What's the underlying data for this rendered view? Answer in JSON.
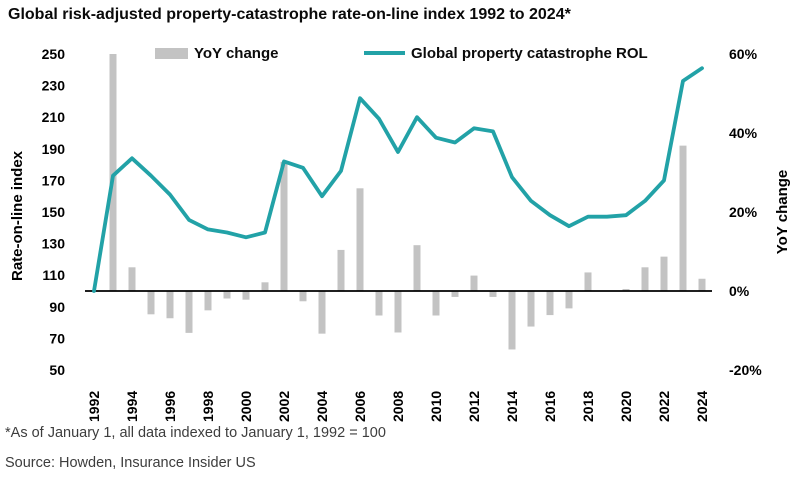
{
  "title": "Global risk-adjusted property-catastrophe rate-on-line index 1992 to 2024*",
  "footnote": "*As of January 1, all data indexed to January 1, 1992 = 100",
  "source": "Source: Howden, Insurance Insider US",
  "chart_data": {
    "type": "combo",
    "title": "Global risk-adjusted property-catastrophe rate-on-line index 1992 to 2024*",
    "x": [
      1992,
      1993,
      1994,
      1995,
      1996,
      1997,
      1998,
      1999,
      2000,
      2001,
      2002,
      2003,
      2004,
      2005,
      2006,
      2007,
      2008,
      2009,
      2010,
      2011,
      2012,
      2013,
      2014,
      2015,
      2016,
      2017,
      2018,
      2019,
      2020,
      2021,
      2022,
      2023,
      2024
    ],
    "x_tick_labels": [
      "1992",
      "1994",
      "1996",
      "1998",
      "2000",
      "2002",
      "2004",
      "2006",
      "2008",
      "2010",
      "2012",
      "2014",
      "2016",
      "2018",
      "2020",
      "2022",
      "2024"
    ],
    "series": [
      {
        "name": "YoY change",
        "type": "bar",
        "axis": "right",
        "unit": "%",
        "values": [
          null,
          73.0,
          6.0,
          -5.9,
          -6.9,
          -10.6,
          -4.9,
          -1.9,
          -2.2,
          2.2,
          32.7,
          -2.6,
          -10.8,
          10.4,
          26.0,
          -6.2,
          -10.5,
          11.6,
          -6.2,
          -1.5,
          3.9,
          -1.5,
          -14.8,
          -9.0,
          -6.1,
          -4.4,
          4.7,
          0.0,
          0.5,
          6.0,
          8.7,
          36.8,
          3.1
        ]
      },
      {
        "name": "Global property catastrophe ROL",
        "type": "line",
        "axis": "left",
        "unit": "index (1992 = 100)",
        "values": [
          100,
          173,
          184,
          173,
          161,
          145,
          139,
          137,
          134,
          137,
          182,
          178,
          160,
          176,
          222,
          209,
          188,
          210,
          197,
          194,
          203,
          201,
          172,
          157,
          148,
          141,
          147,
          147,
          148,
          157,
          170,
          233,
          241
        ]
      }
    ],
    "left_axis": {
      "title": "Rate-on-line index",
      "min": 50,
      "max": 250,
      "tick_values": [
        250,
        230,
        210,
        190,
        170,
        150,
        130,
        110,
        90,
        70,
        50
      ]
    },
    "right_axis": {
      "title": "YoY change",
      "min": -20,
      "max": 60,
      "tick_values": [
        60,
        40,
        20,
        0,
        -20
      ],
      "tick_labels": [
        "60%",
        "40%",
        "20%",
        "0%",
        "-20%"
      ]
    },
    "baseline_value": 0,
    "grid": false,
    "legend_position": "top",
    "colors": {
      "bar": "#c3c3c3",
      "line": "#22a2a7",
      "baseline": "#000000",
      "text": "#000000"
    }
  }
}
